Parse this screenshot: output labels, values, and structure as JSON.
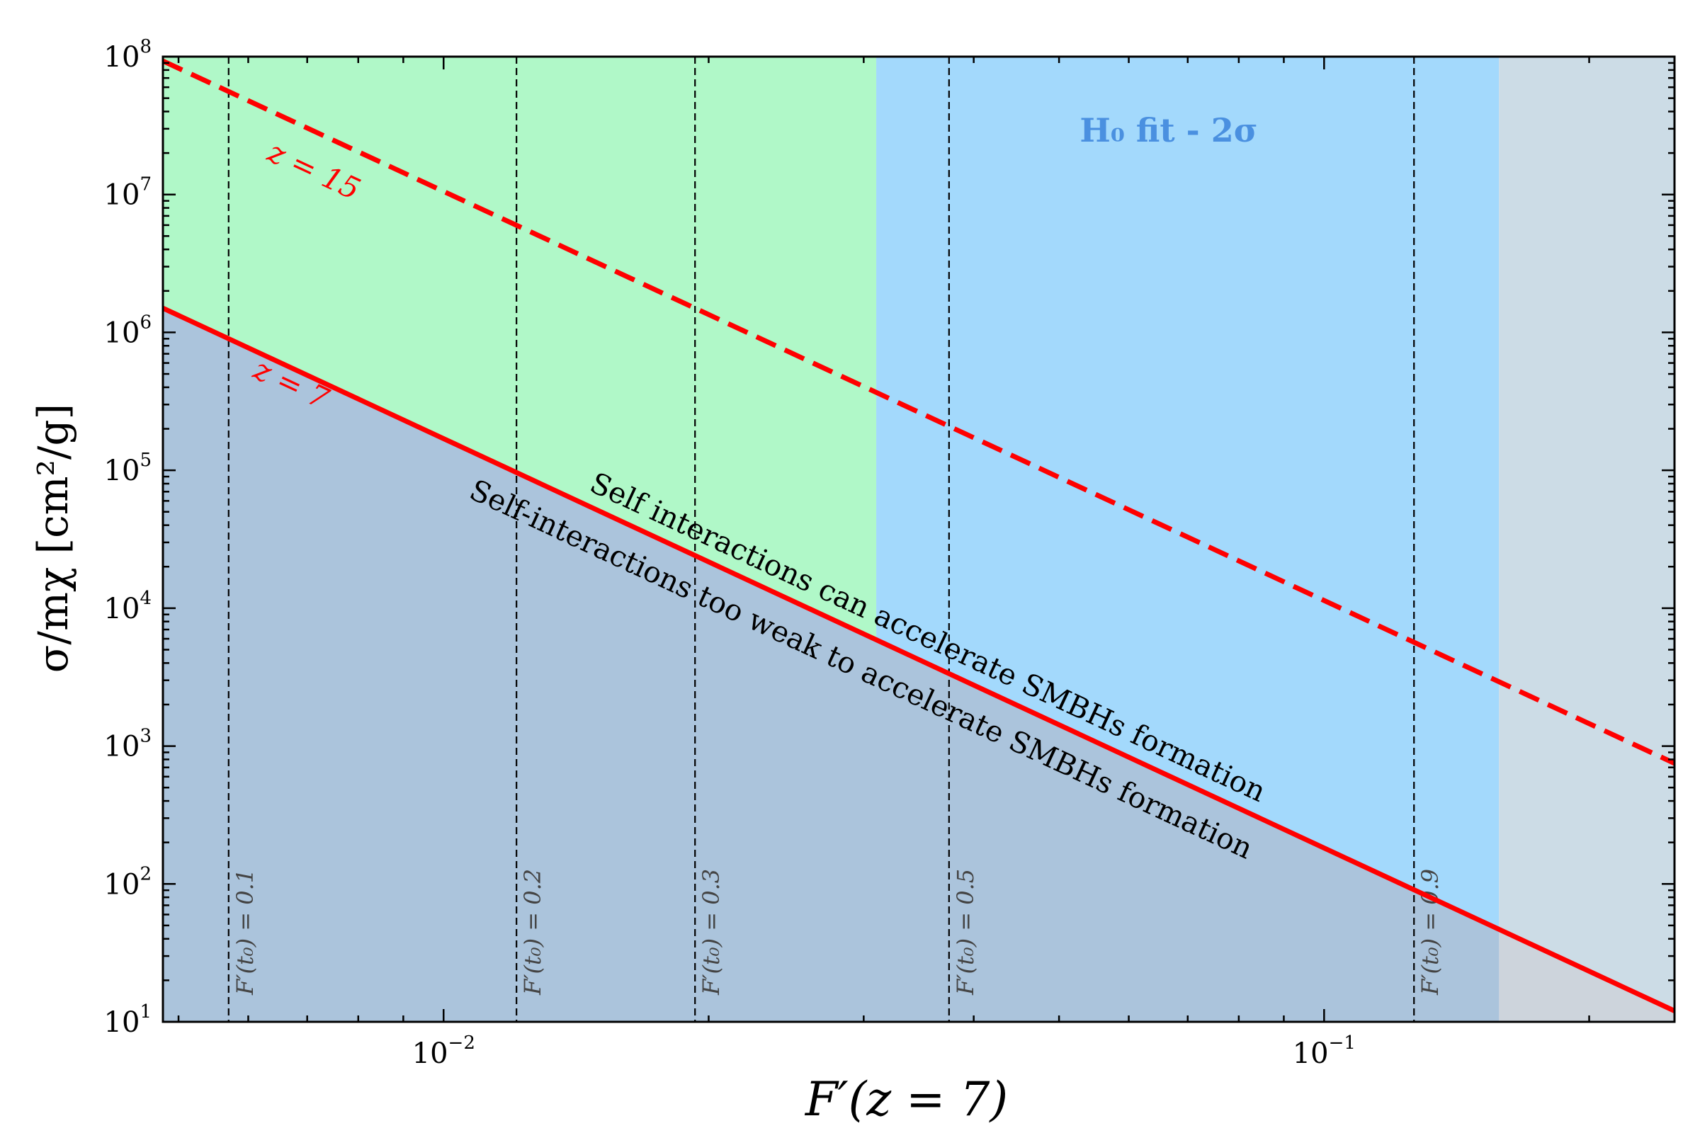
{
  "chart_data": {
    "type": "line",
    "xlabel": "F′(z = 7)",
    "ylabel": "σ/mχ  [cm²/g]",
    "x_scale": "log",
    "y_scale": "log",
    "xlim": [
      0.0048,
      0.25
    ],
    "ylim": [
      10,
      100000000
    ],
    "x_ticks": [
      {
        "value": 0.01,
        "base": "10",
        "exp": "−2"
      },
      {
        "value": 0.1,
        "base": "10",
        "exp": "−1"
      }
    ],
    "y_ticks": [
      {
        "value": 10,
        "base": "10",
        "exp": "1"
      },
      {
        "value": 100,
        "base": "10",
        "exp": "2"
      },
      {
        "value": 1000,
        "base": "10",
        "exp": "3"
      },
      {
        "value": 10000,
        "base": "10",
        "exp": "4"
      },
      {
        "value": 100000,
        "base": "10",
        "exp": "5"
      },
      {
        "value": 1000000,
        "base": "10",
        "exp": "6"
      },
      {
        "value": 10000000,
        "base": "10",
        "exp": "7"
      },
      {
        "value": 100000000,
        "base": "10",
        "exp": "8"
      }
    ],
    "regions": [
      {
        "name": "green",
        "x": [
          0.0048,
          0.031
        ],
        "color": "#b0f8c8"
      },
      {
        "name": "blue",
        "x": [
          0.031,
          0.158
        ],
        "color": "#a3d9fc"
      },
      {
        "name": "grey",
        "x": [
          0.158,
          0.25
        ],
        "color": "#ccdce6"
      }
    ],
    "series": [
      {
        "name": "z = 15",
        "style": "dashed",
        "color": "#ff0000",
        "x": [
          0.0048,
          0.25
        ],
        "y": [
          93000000,
          750
        ]
      },
      {
        "name": "z = 7",
        "style": "solid",
        "color": "#ff0000",
        "x": [
          0.0048,
          0.25
        ],
        "y": [
          1500000,
          12
        ]
      }
    ],
    "vlines": [
      {
        "x": 0.0057,
        "label": "F′(t₀) = 0.1"
      },
      {
        "x": 0.0121,
        "label": "F′(t₀) = 0.2"
      },
      {
        "x": 0.0193,
        "label": "F′(t₀) = 0.3"
      },
      {
        "x": 0.0375,
        "label": "F′(t₀) = 0.5"
      },
      {
        "x": 0.1265,
        "label": "F′(t₀) = 0.9"
      }
    ],
    "annotations": {
      "h0": "H₀ fit - 2σ",
      "above": "Self interactions can accelerate SMBHs formation",
      "below": "Self-interactions too weak to accelerate SMBHs formation",
      "z15": "z = 15",
      "z7": "z = 7"
    },
    "colors": {
      "line": "#ff0000",
      "h0_text": "#4a90e0",
      "below_fill": "#abc4dc",
      "below_fill_grey": "#cdd4dc"
    }
  }
}
